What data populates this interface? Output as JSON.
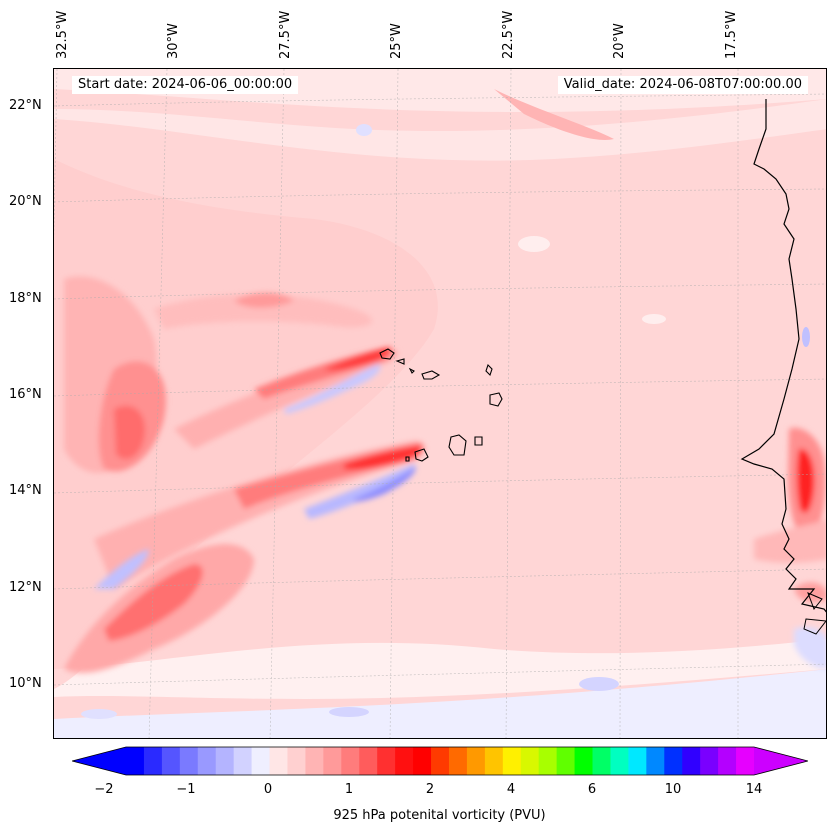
{
  "header": {
    "start_date": "Start date: 2024-06-06_00:00:00",
    "valid_date": "Valid_date: 2024-06-08T07:00:00.00"
  },
  "axes": {
    "lon_labels": [
      "32.5°W",
      "30°W",
      "27.5°W",
      "25°W",
      "22.5°W",
      "20°W",
      "17.5°W"
    ],
    "lat_labels": [
      "22°N",
      "20°N",
      "18°N",
      "16°N",
      "14°N",
      "12°N",
      "10°N"
    ]
  },
  "colorbar": {
    "label": "925 hPa potenital vorticity (PVU)",
    "ticks": [
      "−2",
      "−1",
      "0",
      "1",
      "2",
      "4",
      "6",
      "10",
      "14"
    ],
    "colors": [
      "#0000ff",
      "#2a2aff",
      "#5555ff",
      "#7a7aff",
      "#9999ff",
      "#b4b4ff",
      "#d2d2ff",
      "#efefff",
      "#ffe6e6",
      "#ffd0d0",
      "#ffb4b4",
      "#ff9a9a",
      "#ff7c7c",
      "#ff5c5c",
      "#ff3030",
      "#ff1010",
      "#ff0000",
      "#ff3a00",
      "#ff6a00",
      "#ff9900",
      "#ffc400",
      "#fff000",
      "#d8f800",
      "#a8ff00",
      "#60ff00",
      "#00ff00",
      "#00ff66",
      "#00ffc0",
      "#00e8ff",
      "#0088ff",
      "#0030ff",
      "#3000ff",
      "#7a00ff",
      "#b400ff",
      "#e600ff"
    ],
    "under_color": "#0000ff",
    "over_color": "#cc00ff"
  }
}
